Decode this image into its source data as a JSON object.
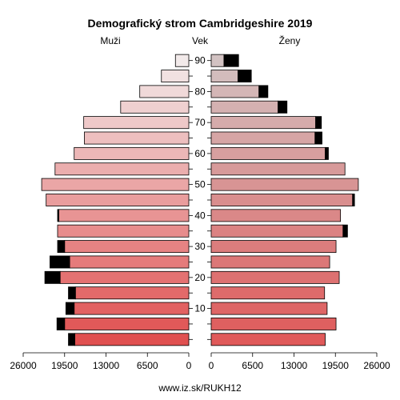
{
  "chart_data": {
    "type": "bar",
    "title": "Demografický strom Cambridgeshire 2019",
    "left_label": "Muži",
    "center_label": "Vek",
    "right_label": "Ženy",
    "footer": "www.iz.sk/RUKH12",
    "age_tick_labels": [
      "10",
      "20",
      "30",
      "40",
      "50",
      "60",
      "70",
      "80",
      "90"
    ],
    "x_tick_labels_left": [
      "26000",
      "19500",
      "13000",
      "6500",
      "0"
    ],
    "x_tick_labels_right": [
      "0",
      "6500",
      "13000",
      "19500",
      "26000"
    ],
    "xlim": [
      0,
      26000
    ],
    "age_groups": [
      "0-4",
      "5-9",
      "10-14",
      "15-19",
      "20-24",
      "25-29",
      "30-34",
      "35-39",
      "40-44",
      "45-49",
      "50-54",
      "55-59",
      "60-64",
      "65-69",
      "70-74",
      "75-79",
      "80-84",
      "85-89",
      "90+"
    ],
    "series": [
      {
        "name": "Muži",
        "values": [
          17900,
          19500,
          18000,
          17800,
          20200,
          18700,
          19500,
          20600,
          20400,
          22400,
          23100,
          21000,
          18000,
          16400,
          16500,
          10700,
          7700,
          4300,
          2100
        ],
        "excess_values": [
          1000,
          1200,
          1300,
          1100,
          2400,
          3100,
          1100,
          0,
          200,
          0,
          0,
          0,
          0,
          0,
          0,
          0,
          0,
          0,
          0
        ]
      },
      {
        "name": "Ženy",
        "values": [
          17900,
          19600,
          18200,
          17800,
          20100,
          18600,
          19600,
          20700,
          20300,
          22200,
          23100,
          21000,
          17900,
          16300,
          16400,
          10500,
          7500,
          4200,
          2000
        ],
        "excess_values": [
          0,
          0,
          0,
          0,
          0,
          0,
          0,
          700,
          0,
          300,
          0,
          0,
          500,
          1100,
          900,
          1400,
          1400,
          2100,
          2300
        ]
      }
    ],
    "colors": {
      "male_young": "#e05050",
      "male_old": "#f2eaea",
      "female_young": "#e05a5a",
      "female_old": "#d2c2c2",
      "excess": "#000000",
      "outline": "#000000"
    }
  }
}
